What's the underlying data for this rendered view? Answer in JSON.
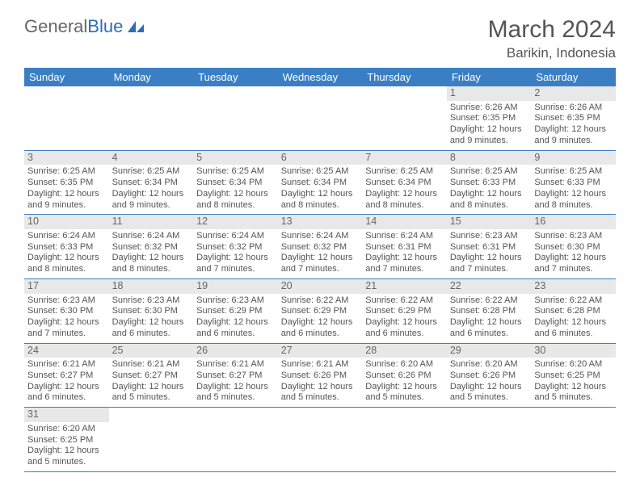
{
  "brand": {
    "part1": "General",
    "part2": "Blue"
  },
  "title": "March 2024",
  "location": "Barikin, Indonesia",
  "colors": {
    "header_bg": "#3a7fc4",
    "header_text": "#ffffff",
    "daynum_bg": "#e8e8e8",
    "border": "#3a7fc4",
    "text": "#555555",
    "brand_blue": "#2d6fb5"
  },
  "typography": {
    "title_fontsize": 30,
    "location_fontsize": 17,
    "dayheader_fontsize": 13,
    "cell_fontsize": 11
  },
  "day_headers": [
    "Sunday",
    "Monday",
    "Tuesday",
    "Wednesday",
    "Thursday",
    "Friday",
    "Saturday"
  ],
  "weeks": [
    [
      null,
      null,
      null,
      null,
      null,
      {
        "d": "1",
        "sr": "6:26 AM",
        "ss": "6:35 PM",
        "dl": "12 hours and 9 minutes."
      },
      {
        "d": "2",
        "sr": "6:26 AM",
        "ss": "6:35 PM",
        "dl": "12 hours and 9 minutes."
      }
    ],
    [
      {
        "d": "3",
        "sr": "6:25 AM",
        "ss": "6:35 PM",
        "dl": "12 hours and 9 minutes."
      },
      {
        "d": "4",
        "sr": "6:25 AM",
        "ss": "6:34 PM",
        "dl": "12 hours and 9 minutes."
      },
      {
        "d": "5",
        "sr": "6:25 AM",
        "ss": "6:34 PM",
        "dl": "12 hours and 8 minutes."
      },
      {
        "d": "6",
        "sr": "6:25 AM",
        "ss": "6:34 PM",
        "dl": "12 hours and 8 minutes."
      },
      {
        "d": "7",
        "sr": "6:25 AM",
        "ss": "6:34 PM",
        "dl": "12 hours and 8 minutes."
      },
      {
        "d": "8",
        "sr": "6:25 AM",
        "ss": "6:33 PM",
        "dl": "12 hours and 8 minutes."
      },
      {
        "d": "9",
        "sr": "6:25 AM",
        "ss": "6:33 PM",
        "dl": "12 hours and 8 minutes."
      }
    ],
    [
      {
        "d": "10",
        "sr": "6:24 AM",
        "ss": "6:33 PM",
        "dl": "12 hours and 8 minutes."
      },
      {
        "d": "11",
        "sr": "6:24 AM",
        "ss": "6:32 PM",
        "dl": "12 hours and 8 minutes."
      },
      {
        "d": "12",
        "sr": "6:24 AM",
        "ss": "6:32 PM",
        "dl": "12 hours and 7 minutes."
      },
      {
        "d": "13",
        "sr": "6:24 AM",
        "ss": "6:32 PM",
        "dl": "12 hours and 7 minutes."
      },
      {
        "d": "14",
        "sr": "6:24 AM",
        "ss": "6:31 PM",
        "dl": "12 hours and 7 minutes."
      },
      {
        "d": "15",
        "sr": "6:23 AM",
        "ss": "6:31 PM",
        "dl": "12 hours and 7 minutes."
      },
      {
        "d": "16",
        "sr": "6:23 AM",
        "ss": "6:30 PM",
        "dl": "12 hours and 7 minutes."
      }
    ],
    [
      {
        "d": "17",
        "sr": "6:23 AM",
        "ss": "6:30 PM",
        "dl": "12 hours and 7 minutes."
      },
      {
        "d": "18",
        "sr": "6:23 AM",
        "ss": "6:30 PM",
        "dl": "12 hours and 6 minutes."
      },
      {
        "d": "19",
        "sr": "6:23 AM",
        "ss": "6:29 PM",
        "dl": "12 hours and 6 minutes."
      },
      {
        "d": "20",
        "sr": "6:22 AM",
        "ss": "6:29 PM",
        "dl": "12 hours and 6 minutes."
      },
      {
        "d": "21",
        "sr": "6:22 AM",
        "ss": "6:29 PM",
        "dl": "12 hours and 6 minutes."
      },
      {
        "d": "22",
        "sr": "6:22 AM",
        "ss": "6:28 PM",
        "dl": "12 hours and 6 minutes."
      },
      {
        "d": "23",
        "sr": "6:22 AM",
        "ss": "6:28 PM",
        "dl": "12 hours and 6 minutes."
      }
    ],
    [
      {
        "d": "24",
        "sr": "6:21 AM",
        "ss": "6:27 PM",
        "dl": "12 hours and 6 minutes."
      },
      {
        "d": "25",
        "sr": "6:21 AM",
        "ss": "6:27 PM",
        "dl": "12 hours and 5 minutes."
      },
      {
        "d": "26",
        "sr": "6:21 AM",
        "ss": "6:27 PM",
        "dl": "12 hours and 5 minutes."
      },
      {
        "d": "27",
        "sr": "6:21 AM",
        "ss": "6:26 PM",
        "dl": "12 hours and 5 minutes."
      },
      {
        "d": "28",
        "sr": "6:20 AM",
        "ss": "6:26 PM",
        "dl": "12 hours and 5 minutes."
      },
      {
        "d": "29",
        "sr": "6:20 AM",
        "ss": "6:26 PM",
        "dl": "12 hours and 5 minutes."
      },
      {
        "d": "30",
        "sr": "6:20 AM",
        "ss": "6:25 PM",
        "dl": "12 hours and 5 minutes."
      }
    ],
    [
      {
        "d": "31",
        "sr": "6:20 AM",
        "ss": "6:25 PM",
        "dl": "12 hours and 5 minutes."
      },
      null,
      null,
      null,
      null,
      null,
      null
    ]
  ],
  "labels": {
    "sunrise": "Sunrise: ",
    "sunset": "Sunset: ",
    "daylight": "Daylight: "
  }
}
